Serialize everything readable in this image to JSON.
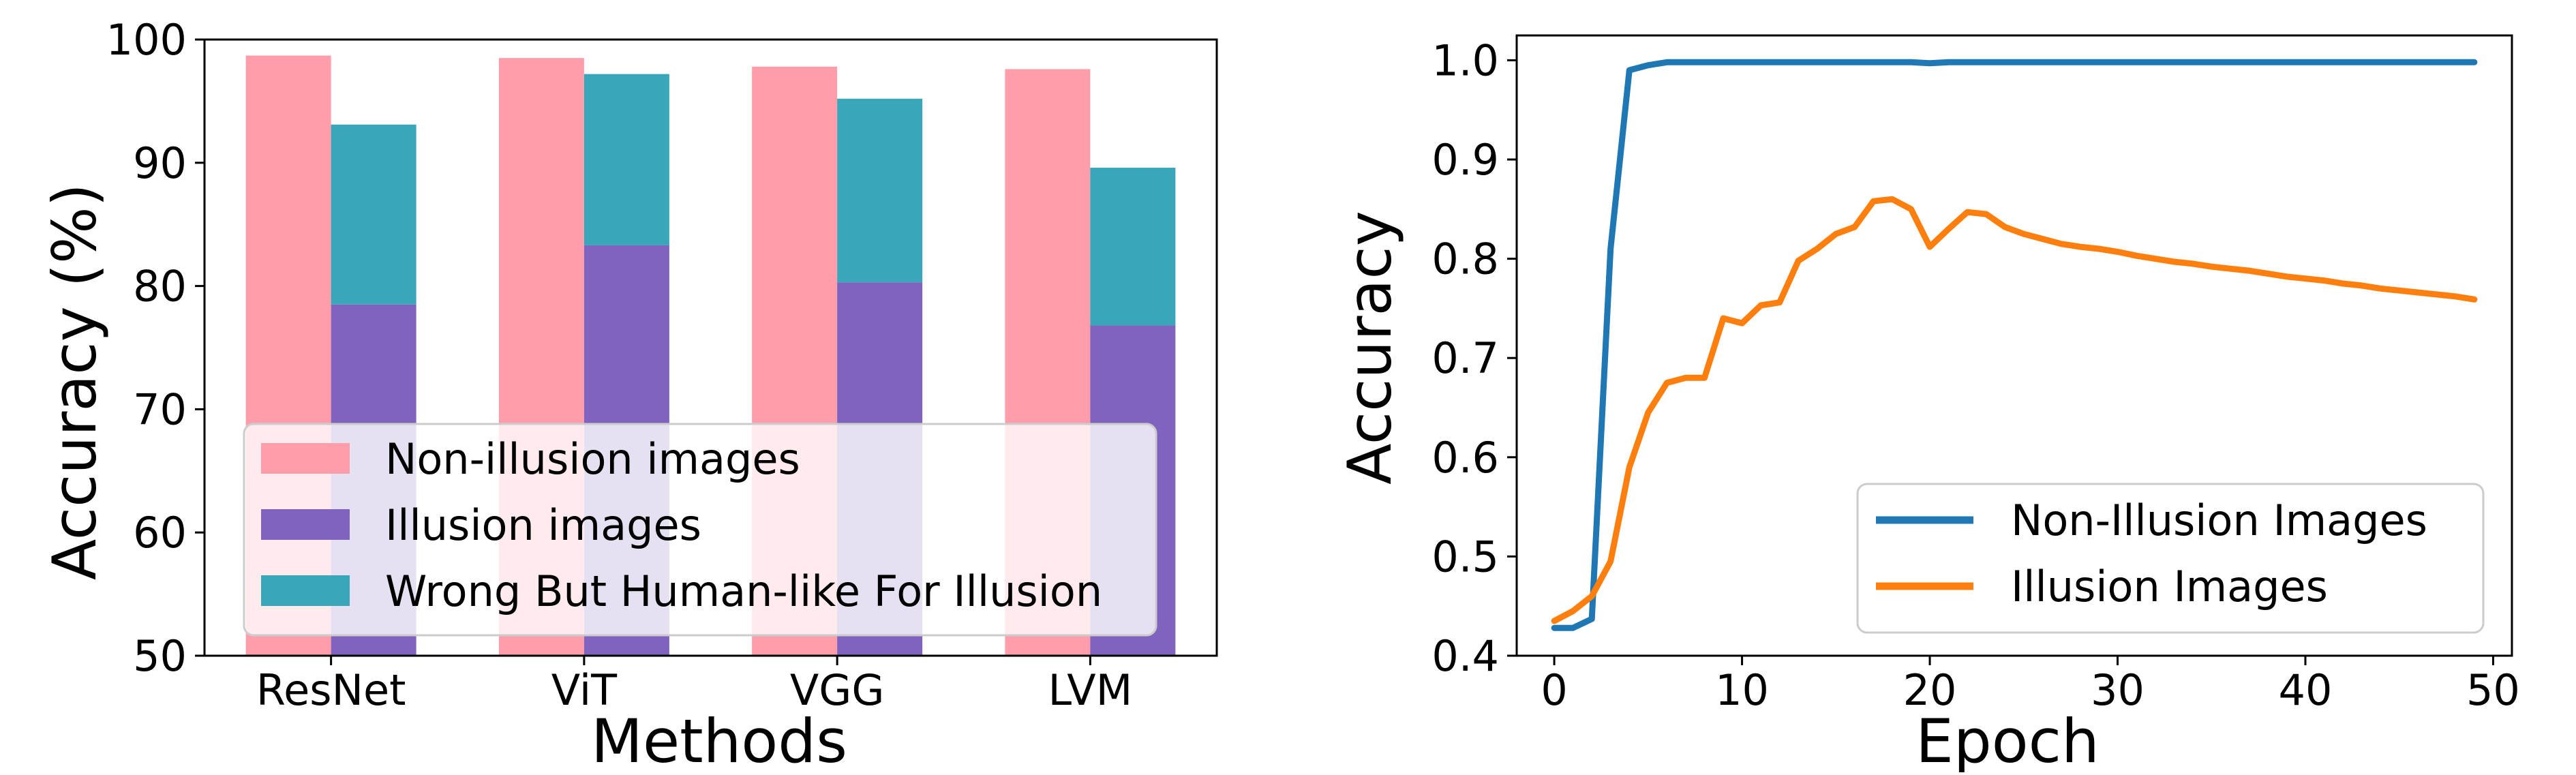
{
  "chart_data": [
    {
      "type": "bar",
      "xlabel": "Methods",
      "ylabel": "Accuracy (%)",
      "ylim": [
        50,
        100
      ],
      "yticks": [
        50,
        60,
        70,
        80,
        90,
        100
      ],
      "categories": [
        "ResNet",
        "ViT",
        "VGG",
        "LVM"
      ],
      "series": [
        {
          "name": "Non-illusion images",
          "values": [
            98.7,
            98.5,
            97.8,
            97.6
          ],
          "color": "#ff9daa"
        },
        {
          "name": "Illusion images",
          "values": [
            78.5,
            83.3,
            80.3,
            76.8
          ],
          "color": "#7f63bf"
        },
        {
          "name": "Wrong But Human-like For Illusion",
          "values": [
            14.6,
            13.9,
            14.9,
            12.8
          ],
          "color": "#3aa6ba",
          "stacked_on": "Illusion images"
        }
      ],
      "legend": "lower-left"
    },
    {
      "type": "line",
      "xlabel": "Epoch",
      "ylabel": "Accuracy",
      "xlim": [
        -2,
        51
      ],
      "ylim": [
        0.4,
        1.025
      ],
      "xticks": [
        0,
        10,
        20,
        30,
        40,
        50
      ],
      "yticks": [
        "0.4",
        "0.5",
        "0.6",
        "0.7",
        "0.8",
        "0.9",
        "1.0"
      ],
      "x": [
        0,
        1,
        2,
        3,
        4,
        5,
        6,
        7,
        8,
        9,
        10,
        11,
        12,
        13,
        14,
        15,
        16,
        17,
        18,
        19,
        20,
        21,
        22,
        23,
        24,
        25,
        26,
        27,
        28,
        29,
        30,
        31,
        32,
        33,
        34,
        35,
        36,
        37,
        38,
        39,
        40,
        41,
        42,
        43,
        44,
        45,
        46,
        47,
        48,
        49
      ],
      "series": [
        {
          "name": "Non-Illusion Images",
          "color": "#1f77b4",
          "values": [
            0.428,
            0.428,
            0.437,
            0.81,
            0.99,
            0.995,
            0.998,
            0.998,
            0.998,
            0.998,
            0.998,
            0.998,
            0.998,
            0.998,
            0.998,
            0.998,
            0.998,
            0.998,
            0.998,
            0.998,
            0.997,
            0.998,
            0.998,
            0.998,
            0.998,
            0.998,
            0.998,
            0.998,
            0.998,
            0.998,
            0.998,
            0.998,
            0.998,
            0.998,
            0.998,
            0.998,
            0.998,
            0.998,
            0.998,
            0.998,
            0.998,
            0.998,
            0.998,
            0.998,
            0.998,
            0.998,
            0.998,
            0.998,
            0.998,
            0.998
          ]
        },
        {
          "name": "Illusion Images",
          "color": "#ff7f0e",
          "values": [
            0.435,
            0.445,
            0.46,
            0.495,
            0.59,
            0.645,
            0.675,
            0.68,
            0.68,
            0.74,
            0.735,
            0.753,
            0.756,
            0.798,
            0.81,
            0.825,
            0.832,
            0.858,
            0.86,
            0.85,
            0.812,
            0.83,
            0.847,
            0.845,
            0.832,
            0.825,
            0.82,
            0.815,
            0.812,
            0.81,
            0.807,
            0.803,
            0.8,
            0.797,
            0.795,
            0.792,
            0.79,
            0.788,
            0.785,
            0.782,
            0.78,
            0.778,
            0.775,
            0.773,
            0.77,
            0.768,
            0.766,
            0.764,
            0.762,
            0.759
          ]
        }
      ],
      "legend": "lower-right"
    }
  ]
}
